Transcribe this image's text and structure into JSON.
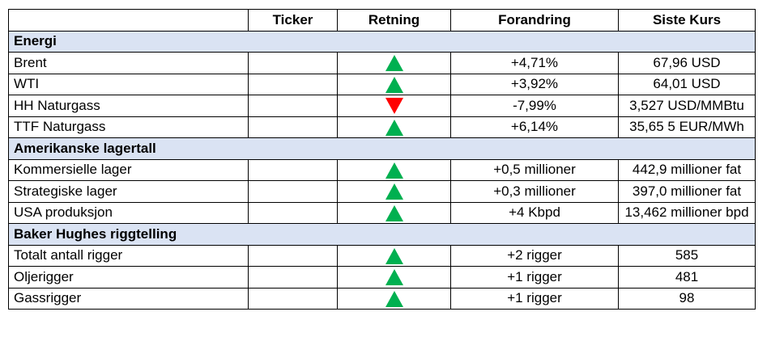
{
  "headers": {
    "name": "",
    "ticker": "Ticker",
    "direction": "Retning",
    "change": "Forandring",
    "last": "Siste Kurs"
  },
  "sections": [
    {
      "title": "Energi",
      "rows": [
        {
          "name": "Brent",
          "ticker": "",
          "direction": "up",
          "change": "+4,71%",
          "last": "67,96 USD"
        },
        {
          "name": "WTI",
          "ticker": "",
          "direction": "up",
          "change": "+3,92%",
          "last": "64,01 USD"
        },
        {
          "name": "HH Naturgass",
          "ticker": "",
          "direction": "down",
          "change": "-7,99%",
          "last": "3,527 USD/MMBtu"
        },
        {
          "name": "TTF Naturgass",
          "ticker": "",
          "direction": "up",
          "change": "+6,14%",
          "last": "35,65 5 EUR/MWh"
        }
      ]
    },
    {
      "title": "Amerikanske lagertall",
      "rows": [
        {
          "name": "Kommersielle lager",
          "ticker": "",
          "direction": "up",
          "change": "+0,5 millioner",
          "last": "442,9 millioner fat"
        },
        {
          "name": "Strategiske lager",
          "ticker": "",
          "direction": "up",
          "change": "+0,3 millioner",
          "last": "397,0 millioner fat"
        },
        {
          "name": "USA produksjon",
          "ticker": "",
          "direction": "up",
          "change": "+4 Kbpd",
          "last": "13,462 millioner bpd"
        }
      ]
    },
    {
      "title": "Baker Hughes riggtelling",
      "rows": [
        {
          "name": "Totalt antall rigger",
          "ticker": "",
          "direction": "up",
          "change": "+2 rigger",
          "last": "585"
        },
        {
          "name": "Oljerigger",
          "ticker": "",
          "direction": "up",
          "change": "+1 rigger",
          "last": "481"
        },
        {
          "name": "Gassrigger",
          "ticker": "",
          "direction": "up",
          "change": "+1 rigger",
          "last": "98"
        }
      ]
    }
  ],
  "colors": {
    "section_bg": "#dae3f3",
    "up": "#00b050",
    "down": "#ff0000"
  }
}
